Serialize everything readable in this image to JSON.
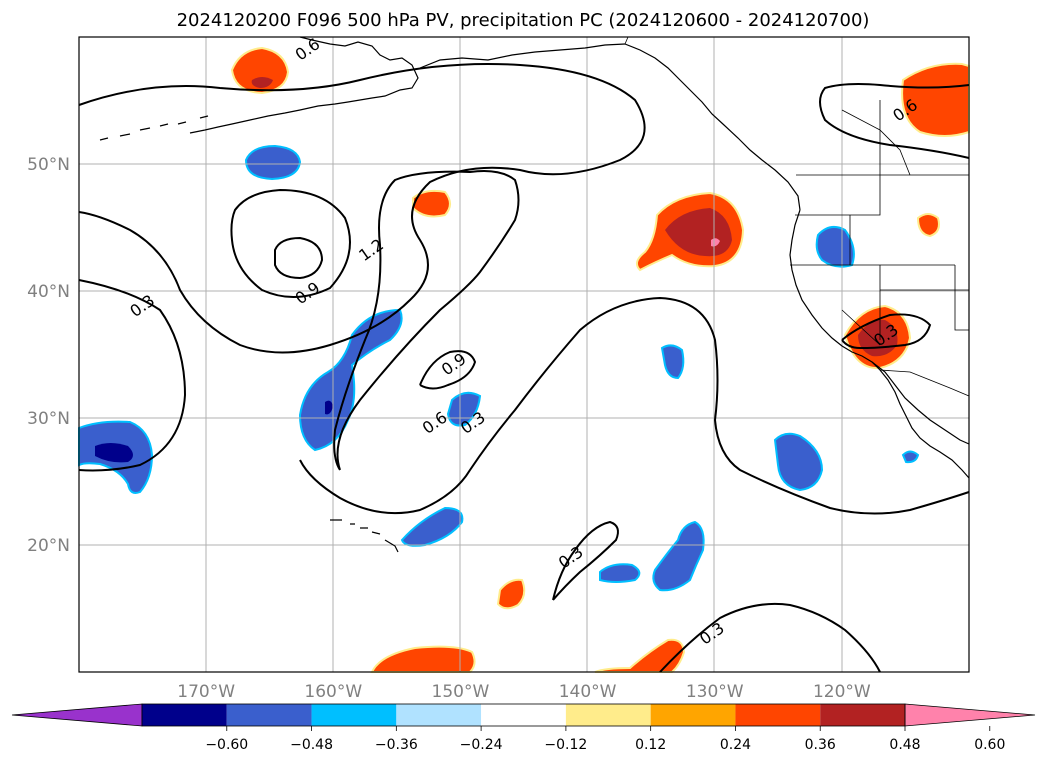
{
  "title": "2024120200 F096 500 hPa PV, precipitation PC (2024120600 - 2024120700)",
  "map": {
    "lon_range": [
      -180,
      -110
    ],
    "lat_range": [
      10,
      60
    ],
    "lon_ticks": [
      {
        "value": -170,
        "label": "170°W"
      },
      {
        "value": -160,
        "label": "160°W"
      },
      {
        "value": -150,
        "label": "150°W"
      },
      {
        "value": -140,
        "label": "140°W"
      },
      {
        "value": -130,
        "label": "130°W"
      },
      {
        "value": -120,
        "label": "120°W"
      }
    ],
    "lat_ticks": [
      {
        "value": 20,
        "label": "20°N"
      },
      {
        "value": 30,
        "label": "30°N"
      },
      {
        "value": 40,
        "label": "40°N"
      },
      {
        "value": 50,
        "label": "50°N"
      }
    ]
  },
  "contour_labels": [
    {
      "text": "0.6",
      "lon": -162,
      "lat": 59
    },
    {
      "text": "0.6",
      "lon": -115,
      "lat": 54.2
    },
    {
      "text": "1.2",
      "lon": -157,
      "lat": 43.2
    },
    {
      "text": "0.9",
      "lon": -162,
      "lat": 39.8
    },
    {
      "text": "0.3",
      "lon": -175,
      "lat": 38.8
    },
    {
      "text": "0.9",
      "lon": -150.5,
      "lat": 34.2
    },
    {
      "text": "0.6",
      "lon": -152,
      "lat": 29.6
    },
    {
      "text": "0.3",
      "lon": -149,
      "lat": 29.6
    },
    {
      "text": "0.3",
      "lon": -141.3,
      "lat": 19
    },
    {
      "text": "0.3",
      "lon": -130.2,
      "lat": 13
    },
    {
      "text": "0.3",
      "lon": -116.5,
      "lat": 36.5
    }
  ],
  "colorbar": {
    "colors": [
      "#9932cc",
      "#00008b",
      "#3a5fcd",
      "#00bfff",
      "#b0e2ff",
      "#ffffff",
      "#ffec8b",
      "#ffa500",
      "#ff4500",
      "#b22222",
      "#ff82ab"
    ],
    "ticks": [
      "−0.60",
      "−0.48",
      "−0.36",
      "−0.24",
      "−0.12",
      "0.12",
      "0.24",
      "0.36",
      "0.48",
      "0.60"
    ]
  }
}
